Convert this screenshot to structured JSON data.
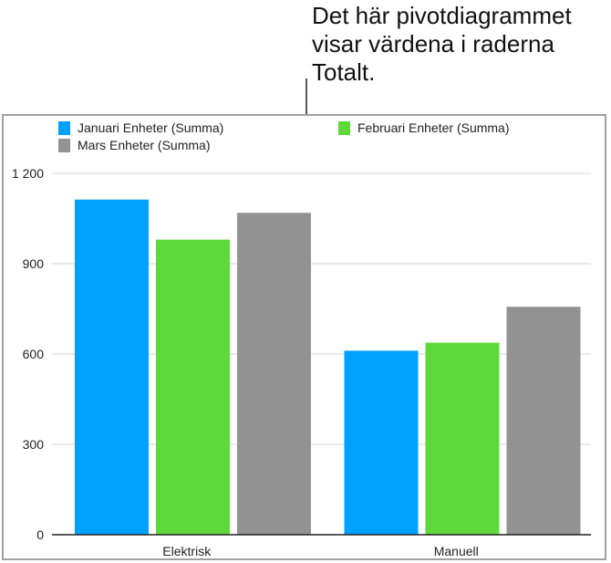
{
  "callout": {
    "text": "Det här pivotdiagrammet visar värdena i raderna Totalt."
  },
  "chart_data": {
    "type": "bar",
    "categories": [
      "Elektrisk",
      "Manuell"
    ],
    "series": [
      {
        "name": "Januari Enheter (Summa)",
        "values": [
          1113,
          611
        ],
        "color": "#00a0ff"
      },
      {
        "name": "Februari Enheter (Summa)",
        "values": [
          980,
          638
        ],
        "color": "#5fd93a"
      },
      {
        "name": "Mars Enheter (Summa)",
        "values": [
          1069,
          757
        ],
        "color": "#929292"
      }
    ],
    "ylim": [
      0,
      1200
    ],
    "yticks": [
      0,
      300,
      600,
      900,
      1200
    ],
    "ytick_labels": [
      "0",
      "300",
      "600",
      "900",
      "1 200"
    ],
    "grid": true,
    "legend": "top",
    "title": "",
    "xlabel": "",
    "ylabel": ""
  }
}
